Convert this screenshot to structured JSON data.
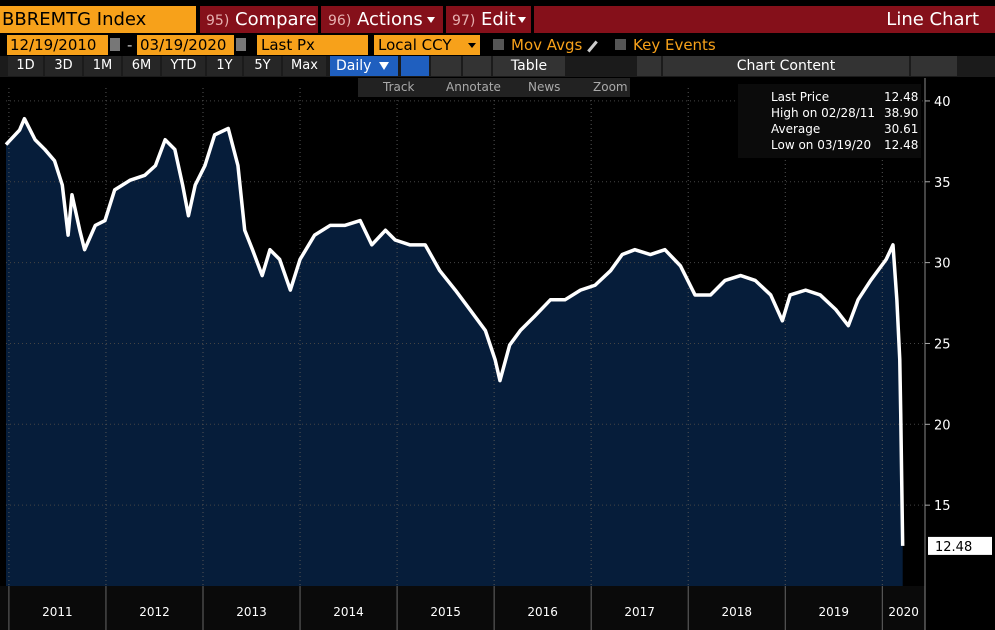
{
  "header": {
    "security": "BBREMTG Index",
    "menu": [
      {
        "number": "95)",
        "label": "Compare"
      },
      {
        "number": "96)",
        "label": "Actions"
      },
      {
        "number": "97)",
        "label": "Edit"
      }
    ],
    "view": "Line Chart"
  },
  "controls": {
    "start_date": "12/19/2010",
    "separator": "-",
    "end_date": "03/19/2020",
    "field": "Last Px",
    "currency": "Local CCY",
    "mov_avgs": "Mov Avgs",
    "key_events": "Key Events"
  },
  "toolbar": {
    "ranges": [
      "1D",
      "3D",
      "1M",
      "6M",
      "YTD",
      "1Y",
      "5Y",
      "Max"
    ],
    "frequency": "Daily",
    "table": "Table",
    "chart_content": "Chart Content",
    "tools": [
      "Track",
      "Annotate",
      "News",
      "Zoom"
    ]
  },
  "chart_data": {
    "type": "line",
    "x": [
      2010.97,
      2011.11,
      2011.16,
      2011.27,
      2011.37,
      2011.47,
      2011.55,
      2011.61,
      2011.65,
      2011.73,
      2011.78,
      2011.89,
      2011.99,
      2012.09,
      2012.25,
      2012.4,
      2012.51,
      2012.61,
      2012.71,
      2012.79,
      2012.85,
      2012.92,
      2013.02,
      2013.12,
      2013.26,
      2013.36,
      2013.43,
      2013.51,
      2013.61,
      2013.69,
      2013.79,
      2013.9,
      2014.0,
      2014.15,
      2014.31,
      2014.46,
      2014.62,
      2014.74,
      2014.88,
      2014.98,
      2015.13,
      2015.29,
      2015.44,
      2015.6,
      2015.75,
      2015.91,
      2016.01,
      2016.06,
      2016.16,
      2016.27,
      2016.42,
      2016.58,
      2016.73,
      2016.89,
      2017.04,
      2017.2,
      2017.32,
      2017.45,
      2017.61,
      2017.76,
      2017.92,
      2018.07,
      2018.23,
      2018.38,
      2018.54,
      2018.69,
      2018.85,
      2018.97,
      2019.05,
      2019.21,
      2019.36,
      2019.52,
      2019.65,
      2019.75,
      2019.88,
      2020.04,
      2020.11,
      2020.15,
      2020.18,
      2020.19,
      2020.2,
      2020.21
    ],
    "series": [
      {
        "name": "Last Price",
        "color": "#ffffff",
        "values": [
          37.3,
          38.2,
          38.9,
          37.6,
          37.0,
          36.3,
          34.8,
          31.7,
          34.2,
          32.0,
          30.8,
          32.3,
          32.6,
          34.5,
          35.1,
          35.4,
          36.0,
          37.6,
          37.0,
          34.8,
          32.9,
          34.8,
          36.0,
          37.9,
          38.3,
          36.0,
          32.0,
          30.8,
          29.2,
          30.8,
          30.2,
          28.3,
          30.2,
          31.7,
          32.3,
          32.3,
          32.6,
          31.1,
          32.0,
          31.4,
          31.1,
          31.1,
          29.5,
          28.3,
          27.1,
          25.8,
          24.0,
          22.7,
          24.9,
          25.8,
          26.7,
          27.7,
          27.7,
          28.3,
          28.6,
          29.5,
          30.5,
          30.8,
          30.5,
          30.8,
          29.8,
          28.0,
          28.0,
          28.9,
          29.2,
          28.9,
          28.0,
          26.4,
          28.0,
          28.3,
          28.0,
          27.1,
          26.1,
          27.7,
          28.9,
          30.2,
          31.1,
          27.7,
          24.0,
          20.6,
          16.5,
          12.48
        ]
      }
    ],
    "area_color": "#061d3a",
    "xlim": [
      2010.97,
      2020.44
    ],
    "xticks": [
      2011,
      2012,
      2013,
      2014,
      2015,
      2016,
      2017,
      2018,
      2019,
      2020
    ],
    "ylim": [
      10,
      40.8
    ],
    "yticks": [
      15,
      20,
      25,
      30,
      35,
      40
    ],
    "grid": true,
    "stats": [
      {
        "label": "High on 02/28/11",
        "value": "38.90"
      },
      {
        "label": "Average",
        "value": "30.61"
      },
      {
        "label": "Low on 03/19/20",
        "value": "12.48"
      }
    ]
  }
}
